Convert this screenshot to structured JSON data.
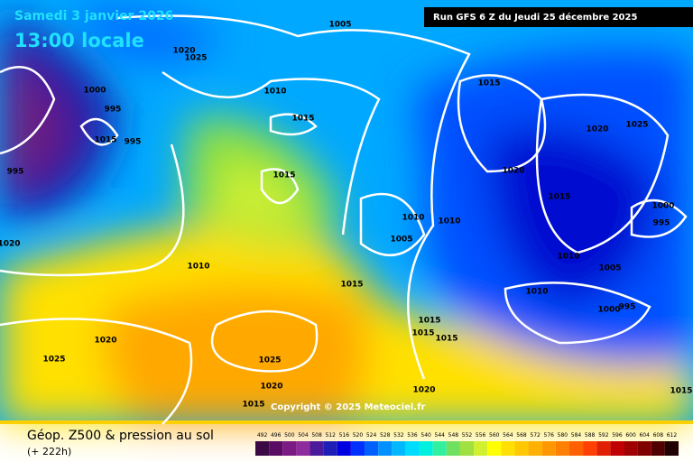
{
  "header": {
    "title": "Samedi 3 janvier 2026",
    "time": "13:00 locale",
    "run": "Run GFS 6 Z du Jeudi 25 décembre 2025"
  },
  "map": {
    "isobar_labels": [
      1005,
      1010,
      1015,
      1015,
      1025,
      1020,
      1000,
      995,
      995,
      1015,
      995,
      1010,
      1015,
      1010,
      1010,
      1005,
      1015,
      1025,
      1020,
      1020,
      1015,
      1000,
      995,
      1010,
      1005,
      1010,
      1000,
      995,
      1015,
      1015,
      1015,
      1020,
      1025,
      1025,
      1020,
      1015,
      1020,
      1020,
      1015
    ]
  },
  "copyright": "Copyright © 2025 Meteociel.fr",
  "legend": {
    "title": "Géop. Z500 & pression au sol",
    "lead": "(+ 222h)",
    "scale": [
      492,
      496,
      500,
      504,
      508,
      512,
      516,
      520,
      524,
      528,
      532,
      536,
      540,
      544,
      548,
      552,
      556,
      560,
      564,
      568,
      572,
      576,
      580,
      584,
      588,
      592,
      596,
      600,
      604,
      608,
      612
    ],
    "colors": [
      "#3b0a45",
      "#5a0b63",
      "#7a1a82",
      "#8f2c9d",
      "#4b1a9b",
      "#1f1fb8",
      "#0000e0",
      "#0030ff",
      "#0060ff",
      "#0090ff",
      "#00b8ff",
      "#00dcff",
      "#00f0e0",
      "#30f0a0",
      "#70e060",
      "#a0e040",
      "#d0f030",
      "#ffff00",
      "#ffe000",
      "#ffc800",
      "#ffb000",
      "#ff9800",
      "#ff8000",
      "#ff6000",
      "#ff4000",
      "#e02000",
      "#c00000",
      "#a00000",
      "#800000",
      "#500000",
      "#200000"
    ]
  }
}
